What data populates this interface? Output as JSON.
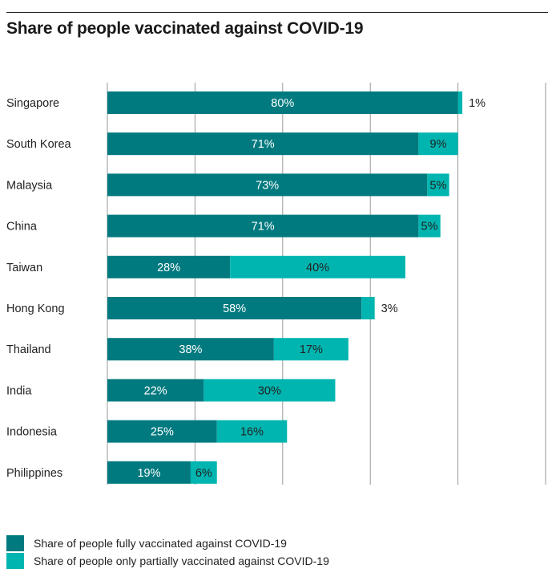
{
  "title": "Share of people vaccinated against COVID-19",
  "colors": {
    "fully": "#007A7F",
    "partial": "#00B5B0",
    "gridline": "#999999"
  },
  "legend": [
    {
      "key": "fully",
      "label": "Share of people fully vaccinated against COVID-19"
    },
    {
      "key": "partial",
      "label": "Share of people only partially vaccinated against COVID-19"
    }
  ],
  "chart_data": {
    "type": "bar",
    "orientation": "horizontal",
    "stacked": true,
    "title": "Share of people vaccinated against COVID-19",
    "categories": [
      "Singapore",
      "South Korea",
      "Malaysia",
      "China",
      "Taiwan",
      "Hong Kong",
      "Thailand",
      "India",
      "Indonesia",
      "Philippines"
    ],
    "series": [
      {
        "name": "Share of people fully vaccinated against COVID-19",
        "values": [
          80,
          71,
          73,
          71,
          28,
          58,
          38,
          22,
          25,
          19
        ]
      },
      {
        "name": "Share of people only partially vaccinated against COVID-19",
        "values": [
          1,
          9,
          5,
          5,
          40,
          3,
          17,
          30,
          16,
          6
        ]
      }
    ],
    "data_labels": {
      "fully": [
        "80%",
        "71%",
        "73%",
        "71%",
        "28%",
        "58%",
        "38%",
        "22%",
        "25%",
        "19%"
      ],
      "partial": [
        "1%",
        "9%",
        "5%",
        "5%",
        "40%",
        "3%",
        "17%",
        "30%",
        "16%",
        "6%"
      ]
    },
    "xlim": [
      0,
      100
    ],
    "grid": true,
    "legend_position": "bottom-left"
  }
}
